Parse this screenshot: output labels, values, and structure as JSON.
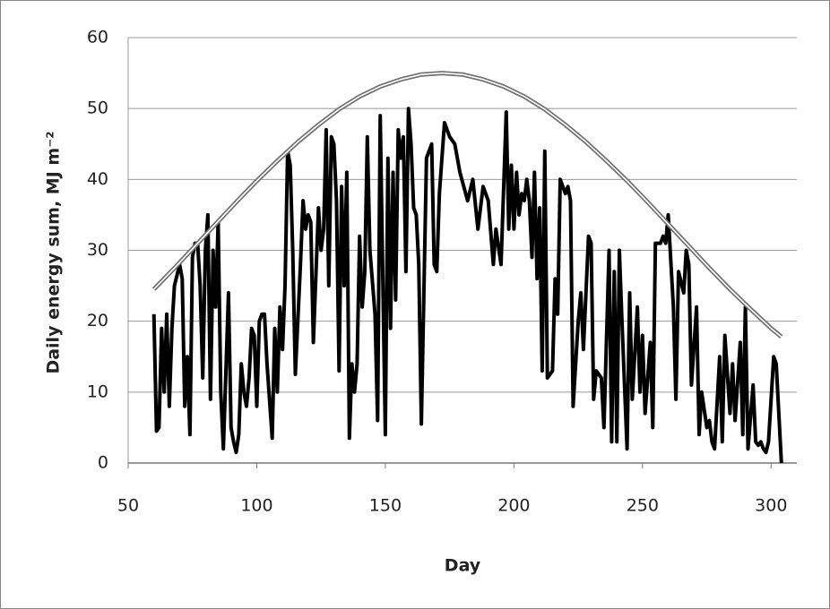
{
  "chart_data": {
    "type": "line",
    "xlabel": "Day",
    "ylabel": "Daily energy sum,  MJ m⁻²",
    "xlim": [
      50,
      310
    ],
    "ylim": [
      0,
      60
    ],
    "xticks": [
      50,
      100,
      150,
      200,
      250,
      300
    ],
    "yticks": [
      0,
      10,
      20,
      30,
      40,
      50,
      60
    ],
    "grid": true,
    "series": [
      {
        "color": "#000000",
        "line_style": "solid",
        "x": [
          60,
          61,
          62,
          63,
          64,
          65,
          66,
          67,
          68,
          70,
          71,
          72,
          73,
          74,
          75,
          76,
          77,
          78,
          79,
          80,
          81,
          82,
          83,
          84,
          85,
          86,
          87,
          89,
          90,
          91,
          92,
          93,
          94,
          95,
          96,
          97,
          98,
          99,
          100,
          101,
          102,
          103,
          104,
          106,
          107,
          108,
          109,
          110,
          111,
          112,
          113,
          114,
          115,
          117,
          118,
          119,
          120,
          121,
          122,
          124,
          125,
          126,
          127,
          128,
          129,
          130,
          131,
          132,
          133,
          134,
          135,
          136,
          137,
          138,
          139,
          140,
          141,
          142,
          143,
          144,
          146,
          147,
          148,
          149,
          150,
          151,
          152,
          153,
          154,
          155,
          156,
          157,
          158,
          159,
          160,
          161,
          162,
          163,
          164,
          166,
          168,
          169,
          170,
          171,
          173,
          175,
          177,
          179,
          182,
          184,
          186,
          188,
          190,
          192,
          193,
          195,
          197,
          198,
          199,
          200,
          201,
          202,
          203,
          204,
          205,
          206,
          207,
          208,
          209,
          210,
          211,
          212,
          213,
          215,
          216,
          217,
          218,
          220,
          221,
          222,
          223,
          225,
          226,
          227,
          229,
          230,
          231,
          232,
          234,
          235,
          237,
          238,
          239,
          240,
          241,
          242,
          244,
          245,
          246,
          248,
          249,
          250,
          251,
          253,
          254,
          255,
          257,
          258,
          259,
          260,
          262,
          263,
          264,
          266,
          267,
          268,
          269,
          271,
          272,
          273,
          275,
          276,
          277,
          278,
          280,
          281,
          282,
          284,
          285,
          286,
          288,
          289,
          290,
          291,
          293,
          294,
          295,
          296,
          297,
          298,
          299,
          301,
          302,
          304
        ],
        "values": [
          21,
          4.5,
          5,
          19,
          10,
          21,
          8,
          19,
          25,
          28,
          26,
          8,
          15,
          4,
          29,
          31,
          31,
          25,
          12,
          30,
          35,
          9,
          30,
          22,
          34,
          10,
          2,
          24,
          5,
          3,
          1.5,
          4,
          14,
          10,
          8,
          12,
          19,
          18,
          8,
          20,
          21,
          21,
          14,
          3.5,
          19,
          10,
          22,
          16,
          25,
          44,
          42,
          30,
          12.5,
          28,
          37,
          33,
          35,
          34,
          17,
          36,
          30,
          33,
          47,
          25,
          46,
          45,
          37,
          13,
          39,
          25,
          41,
          3.5,
          14,
          10,
          14,
          32,
          22,
          27,
          46,
          30,
          21,
          6,
          49,
          26,
          4,
          43,
          19,
          41,
          23,
          47,
          43,
          46,
          27,
          50,
          45,
          36,
          35,
          28,
          5.5,
          43,
          45,
          28,
          27,
          38,
          48,
          46,
          45,
          41,
          37,
          40,
          33,
          39,
          37,
          28,
          33,
          28,
          49.5,
          33,
          42,
          33,
          41,
          35,
          38,
          37,
          40,
          37,
          29,
          41,
          26,
          36,
          13,
          44,
          12,
          13,
          26,
          21,
          40,
          38,
          39,
          37,
          8,
          20,
          24,
          16,
          32,
          31,
          9,
          13,
          12,
          5,
          30,
          3,
          27,
          3,
          30,
          20,
          2,
          24,
          9,
          22,
          10,
          18,
          7,
          17,
          5,
          31,
          31,
          32,
          31,
          35,
          22,
          9,
          27,
          24,
          30,
          28,
          11,
          22,
          4,
          10,
          5,
          6,
          3,
          2,
          15,
          3,
          18,
          7,
          14,
          6,
          17,
          4,
          22,
          2,
          11,
          3,
          2.5,
          3,
          2,
          1.5,
          3,
          15,
          14,
          0
        ]
      },
      {
        "color": "#707070",
        "line_style": "double",
        "x": [
          60,
          68,
          76,
          84,
          92,
          100,
          108,
          116,
          124,
          132,
          140,
          148,
          156,
          164,
          172,
          180,
          188,
          196,
          204,
          212,
          220,
          228,
          236,
          244,
          252,
          260,
          268,
          276,
          284,
          292,
          300,
          304
        ],
        "values": [
          24.5,
          27.5,
          30.6,
          33.7,
          36.8,
          39.8,
          42.6,
          45.3,
          47.7,
          49.9,
          51.7,
          53.1,
          54.1,
          54.8,
          55.0,
          54.8,
          54.1,
          53.1,
          51.7,
          49.9,
          47.7,
          45.3,
          42.6,
          39.8,
          36.8,
          33.7,
          30.6,
          27.5,
          24.5,
          21.7,
          19.0,
          17.8
        ]
      }
    ]
  }
}
